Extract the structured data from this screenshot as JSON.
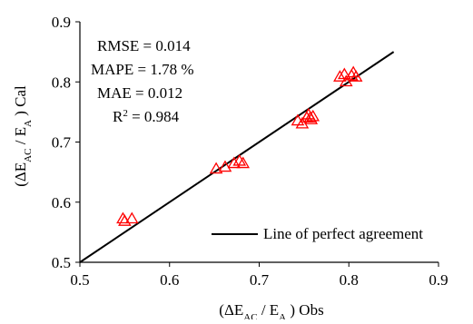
{
  "chart_data": {
    "type": "scatter",
    "title": "",
    "x_axis": {
      "label_main": "(ΔE",
      "label_sub1": "AC",
      "label_mid": " / E",
      "label_sub2": "A",
      "label_tail": " ) Obs",
      "range": [
        0.5,
        0.9
      ],
      "ticks": [
        0.5,
        0.6,
        0.7,
        0.8,
        0.9
      ],
      "tick_labels": [
        "0.5",
        "0.6",
        "0.7",
        "0.8",
        "0.9"
      ]
    },
    "y_axis": {
      "label_main": "(ΔE",
      "label_sub1": "AC",
      "label_mid": " / E",
      "label_sub2": "A",
      "label_tail": " ) Cal",
      "range": [
        0.5,
        0.9
      ],
      "ticks": [
        0.5,
        0.6,
        0.7,
        0.8,
        0.9
      ],
      "tick_labels": [
        "0.5",
        "0.6",
        "0.7",
        "0.8",
        "0.9"
      ]
    },
    "grid": false,
    "stats": [
      {
        "text": "RMSE = 0.014"
      },
      {
        "text": "MAPE = 1.78 %"
      },
      {
        "text": "MAE = 0.012"
      },
      {
        "main": "R",
        "sup": "2",
        "rest": " = 0.984"
      }
    ],
    "legend": {
      "position": "bottom-right",
      "entries": [
        "Line of perfect agreement"
      ]
    },
    "line": {
      "style": "solid",
      "color": "#000000",
      "from": [
        0.5,
        0.5
      ],
      "to": [
        0.85,
        0.85
      ]
    },
    "series": [
      {
        "marker": "triangle-open",
        "color": "#ff0000",
        "points": [
          [
            0.548,
            0.572
          ],
          [
            0.55,
            0.568
          ],
          [
            0.558,
            0.572
          ],
          [
            0.652,
            0.655
          ],
          [
            0.662,
            0.658
          ],
          [
            0.672,
            0.664
          ],
          [
            0.678,
            0.668
          ],
          [
            0.682,
            0.664
          ],
          [
            0.743,
            0.735
          ],
          [
            0.748,
            0.73
          ],
          [
            0.753,
            0.74
          ],
          [
            0.755,
            0.745
          ],
          [
            0.757,
            0.74
          ],
          [
            0.758,
            0.737
          ],
          [
            0.76,
            0.742
          ],
          [
            0.79,
            0.808
          ],
          [
            0.795,
            0.812
          ],
          [
            0.797,
            0.8
          ],
          [
            0.803,
            0.81
          ],
          [
            0.805,
            0.815
          ],
          [
            0.808,
            0.808
          ]
        ]
      }
    ]
  }
}
